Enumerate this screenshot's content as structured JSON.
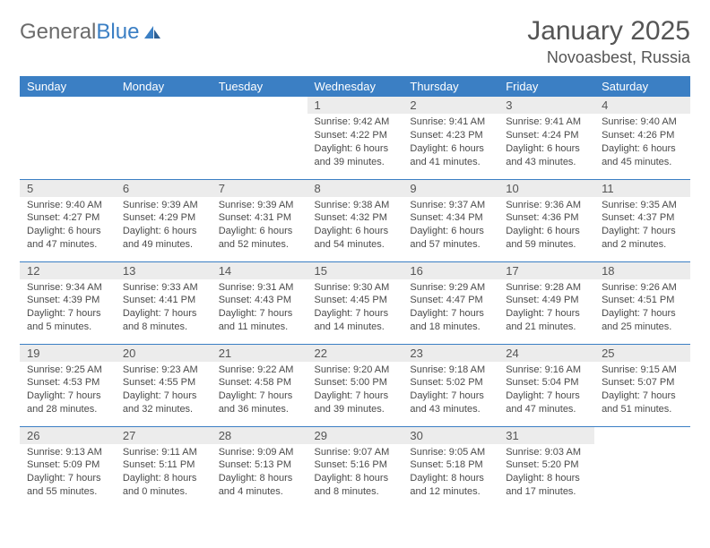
{
  "logo": {
    "text1": "General",
    "text2": "Blue"
  },
  "title": "January 2025",
  "location": "Novoasbest, Russia",
  "colors": {
    "header_bg": "#3b7fc4",
    "header_text": "#ffffff",
    "daynum_bg": "#ececec",
    "cell_border": "#3b7fc4",
    "body_text": "#4a4a4a"
  },
  "weekdays": [
    "Sunday",
    "Monday",
    "Tuesday",
    "Wednesday",
    "Thursday",
    "Friday",
    "Saturday"
  ],
  "weeks": [
    [
      {
        "empty": true
      },
      {
        "empty": true
      },
      {
        "empty": true
      },
      {
        "day": "1",
        "sunrise": "Sunrise: 9:42 AM",
        "sunset": "Sunset: 4:22 PM",
        "dl1": "Daylight: 6 hours",
        "dl2": "and 39 minutes."
      },
      {
        "day": "2",
        "sunrise": "Sunrise: 9:41 AM",
        "sunset": "Sunset: 4:23 PM",
        "dl1": "Daylight: 6 hours",
        "dl2": "and 41 minutes."
      },
      {
        "day": "3",
        "sunrise": "Sunrise: 9:41 AM",
        "sunset": "Sunset: 4:24 PM",
        "dl1": "Daylight: 6 hours",
        "dl2": "and 43 minutes."
      },
      {
        "day": "4",
        "sunrise": "Sunrise: 9:40 AM",
        "sunset": "Sunset: 4:26 PM",
        "dl1": "Daylight: 6 hours",
        "dl2": "and 45 minutes."
      }
    ],
    [
      {
        "day": "5",
        "sunrise": "Sunrise: 9:40 AM",
        "sunset": "Sunset: 4:27 PM",
        "dl1": "Daylight: 6 hours",
        "dl2": "and 47 minutes."
      },
      {
        "day": "6",
        "sunrise": "Sunrise: 9:39 AM",
        "sunset": "Sunset: 4:29 PM",
        "dl1": "Daylight: 6 hours",
        "dl2": "and 49 minutes."
      },
      {
        "day": "7",
        "sunrise": "Sunrise: 9:39 AM",
        "sunset": "Sunset: 4:31 PM",
        "dl1": "Daylight: 6 hours",
        "dl2": "and 52 minutes."
      },
      {
        "day": "8",
        "sunrise": "Sunrise: 9:38 AM",
        "sunset": "Sunset: 4:32 PM",
        "dl1": "Daylight: 6 hours",
        "dl2": "and 54 minutes."
      },
      {
        "day": "9",
        "sunrise": "Sunrise: 9:37 AM",
        "sunset": "Sunset: 4:34 PM",
        "dl1": "Daylight: 6 hours",
        "dl2": "and 57 minutes."
      },
      {
        "day": "10",
        "sunrise": "Sunrise: 9:36 AM",
        "sunset": "Sunset: 4:36 PM",
        "dl1": "Daylight: 6 hours",
        "dl2": "and 59 minutes."
      },
      {
        "day": "11",
        "sunrise": "Sunrise: 9:35 AM",
        "sunset": "Sunset: 4:37 PM",
        "dl1": "Daylight: 7 hours",
        "dl2": "and 2 minutes."
      }
    ],
    [
      {
        "day": "12",
        "sunrise": "Sunrise: 9:34 AM",
        "sunset": "Sunset: 4:39 PM",
        "dl1": "Daylight: 7 hours",
        "dl2": "and 5 minutes."
      },
      {
        "day": "13",
        "sunrise": "Sunrise: 9:33 AM",
        "sunset": "Sunset: 4:41 PM",
        "dl1": "Daylight: 7 hours",
        "dl2": "and 8 minutes."
      },
      {
        "day": "14",
        "sunrise": "Sunrise: 9:31 AM",
        "sunset": "Sunset: 4:43 PM",
        "dl1": "Daylight: 7 hours",
        "dl2": "and 11 minutes."
      },
      {
        "day": "15",
        "sunrise": "Sunrise: 9:30 AM",
        "sunset": "Sunset: 4:45 PM",
        "dl1": "Daylight: 7 hours",
        "dl2": "and 14 minutes."
      },
      {
        "day": "16",
        "sunrise": "Sunrise: 9:29 AM",
        "sunset": "Sunset: 4:47 PM",
        "dl1": "Daylight: 7 hours",
        "dl2": "and 18 minutes."
      },
      {
        "day": "17",
        "sunrise": "Sunrise: 9:28 AM",
        "sunset": "Sunset: 4:49 PM",
        "dl1": "Daylight: 7 hours",
        "dl2": "and 21 minutes."
      },
      {
        "day": "18",
        "sunrise": "Sunrise: 9:26 AM",
        "sunset": "Sunset: 4:51 PM",
        "dl1": "Daylight: 7 hours",
        "dl2": "and 25 minutes."
      }
    ],
    [
      {
        "day": "19",
        "sunrise": "Sunrise: 9:25 AM",
        "sunset": "Sunset: 4:53 PM",
        "dl1": "Daylight: 7 hours",
        "dl2": "and 28 minutes."
      },
      {
        "day": "20",
        "sunrise": "Sunrise: 9:23 AM",
        "sunset": "Sunset: 4:55 PM",
        "dl1": "Daylight: 7 hours",
        "dl2": "and 32 minutes."
      },
      {
        "day": "21",
        "sunrise": "Sunrise: 9:22 AM",
        "sunset": "Sunset: 4:58 PM",
        "dl1": "Daylight: 7 hours",
        "dl2": "and 36 minutes."
      },
      {
        "day": "22",
        "sunrise": "Sunrise: 9:20 AM",
        "sunset": "Sunset: 5:00 PM",
        "dl1": "Daylight: 7 hours",
        "dl2": "and 39 minutes."
      },
      {
        "day": "23",
        "sunrise": "Sunrise: 9:18 AM",
        "sunset": "Sunset: 5:02 PM",
        "dl1": "Daylight: 7 hours",
        "dl2": "and 43 minutes."
      },
      {
        "day": "24",
        "sunrise": "Sunrise: 9:16 AM",
        "sunset": "Sunset: 5:04 PM",
        "dl1": "Daylight: 7 hours",
        "dl2": "and 47 minutes."
      },
      {
        "day": "25",
        "sunrise": "Sunrise: 9:15 AM",
        "sunset": "Sunset: 5:07 PM",
        "dl1": "Daylight: 7 hours",
        "dl2": "and 51 minutes."
      }
    ],
    [
      {
        "day": "26",
        "sunrise": "Sunrise: 9:13 AM",
        "sunset": "Sunset: 5:09 PM",
        "dl1": "Daylight: 7 hours",
        "dl2": "and 55 minutes."
      },
      {
        "day": "27",
        "sunrise": "Sunrise: 9:11 AM",
        "sunset": "Sunset: 5:11 PM",
        "dl1": "Daylight: 8 hours",
        "dl2": "and 0 minutes."
      },
      {
        "day": "28",
        "sunrise": "Sunrise: 9:09 AM",
        "sunset": "Sunset: 5:13 PM",
        "dl1": "Daylight: 8 hours",
        "dl2": "and 4 minutes."
      },
      {
        "day": "29",
        "sunrise": "Sunrise: 9:07 AM",
        "sunset": "Sunset: 5:16 PM",
        "dl1": "Daylight: 8 hours",
        "dl2": "and 8 minutes."
      },
      {
        "day": "30",
        "sunrise": "Sunrise: 9:05 AM",
        "sunset": "Sunset: 5:18 PM",
        "dl1": "Daylight: 8 hours",
        "dl2": "and 12 minutes."
      },
      {
        "day": "31",
        "sunrise": "Sunrise: 9:03 AM",
        "sunset": "Sunset: 5:20 PM",
        "dl1": "Daylight: 8 hours",
        "dl2": "and 17 minutes."
      },
      {
        "empty": true
      }
    ]
  ]
}
